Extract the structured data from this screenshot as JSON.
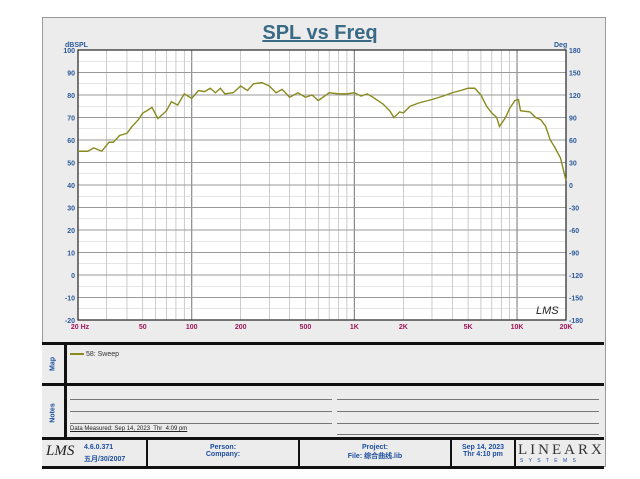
{
  "chart_data": {
    "type": "line",
    "title": "SPL vs Freq",
    "ylabel": "dBSPL",
    "y2label": "Deg",
    "xscale": "log",
    "xlim": [
      20,
      20000
    ],
    "ylim": [
      -20,
      100
    ],
    "y2lim": [
      -180,
      180
    ],
    "xticks": [
      "20 Hz",
      "50",
      "100",
      "200",
      "500",
      "1K",
      "2K",
      "5K",
      "10K",
      "20K"
    ],
    "xtick_values": [
      20,
      50,
      100,
      200,
      500,
      1000,
      2000,
      5000,
      10000,
      20000
    ],
    "yticks": [
      100,
      90,
      80,
      70,
      60,
      50,
      40,
      30,
      20,
      10,
      0,
      -10,
      -20
    ],
    "y2ticks": [
      180,
      150,
      120,
      90,
      60,
      30,
      0,
      -30,
      -60,
      -90,
      -120,
      -150,
      -180
    ],
    "grid": true,
    "series": [
      {
        "name": "58: Sweep",
        "color": "#8a8a1e",
        "x": [
          20,
          23,
          25,
          28,
          31,
          33,
          36,
          40,
          43,
          47,
          50,
          53,
          57,
          62,
          70,
          75,
          82,
          90,
          100,
          110,
          120,
          130,
          140,
          150,
          160,
          180,
          200,
          220,
          240,
          270,
          300,
          330,
          360,
          400,
          450,
          500,
          550,
          600,
          700,
          800,
          900,
          1000,
          1100,
          1200,
          1300,
          1500,
          1650,
          1750,
          1900,
          2000,
          2200,
          2500,
          3000,
          3500,
          4000,
          4500,
          5000,
          5500,
          6000,
          6500,
          7000,
          7500,
          7800,
          8500,
          9000,
          9700,
          10200,
          10500,
          12000,
          13000,
          14000,
          15000,
          16000,
          17000,
          18500,
          20000
        ],
        "y": [
          55,
          55,
          56.5,
          55,
          59,
          59,
          62,
          63,
          66,
          69,
          72,
          73,
          74.5,
          69.5,
          73,
          77,
          75.5,
          80.5,
          78.5,
          82,
          81.5,
          83,
          81,
          83,
          80.5,
          81,
          84,
          82,
          85,
          85.5,
          84,
          81,
          82.5,
          79,
          81,
          79,
          80,
          77.5,
          81,
          80.5,
          80.5,
          81,
          79.5,
          80.5,
          79,
          76,
          73,
          70,
          72.5,
          72,
          75,
          76.5,
          78,
          79.5,
          81,
          82,
          83,
          83,
          80,
          75,
          72,
          70,
          66,
          70,
          74,
          77.5,
          78,
          73,
          72.5,
          70,
          69,
          66,
          60,
          57,
          52,
          42
        ]
      }
    ]
  },
  "legend_label": "58: Sweep",
  "logo": "LMS",
  "map_label": "Map",
  "notes_label": "Notes",
  "data_measured": "Data Measured: Sep 14, 2023  Thr  4:09 pm",
  "footer": {
    "version": "4.6.0.371",
    "date_cn": "五月/30/2007",
    "person": "Person:",
    "company": "Company:",
    "project": "Project:",
    "file": "File: 综合曲线.lib",
    "date": "Sep 14, 2023",
    "time": "Thr  4:10 pm",
    "brand": "LINEARX",
    "brand_sub": "S Y S T E M S"
  }
}
